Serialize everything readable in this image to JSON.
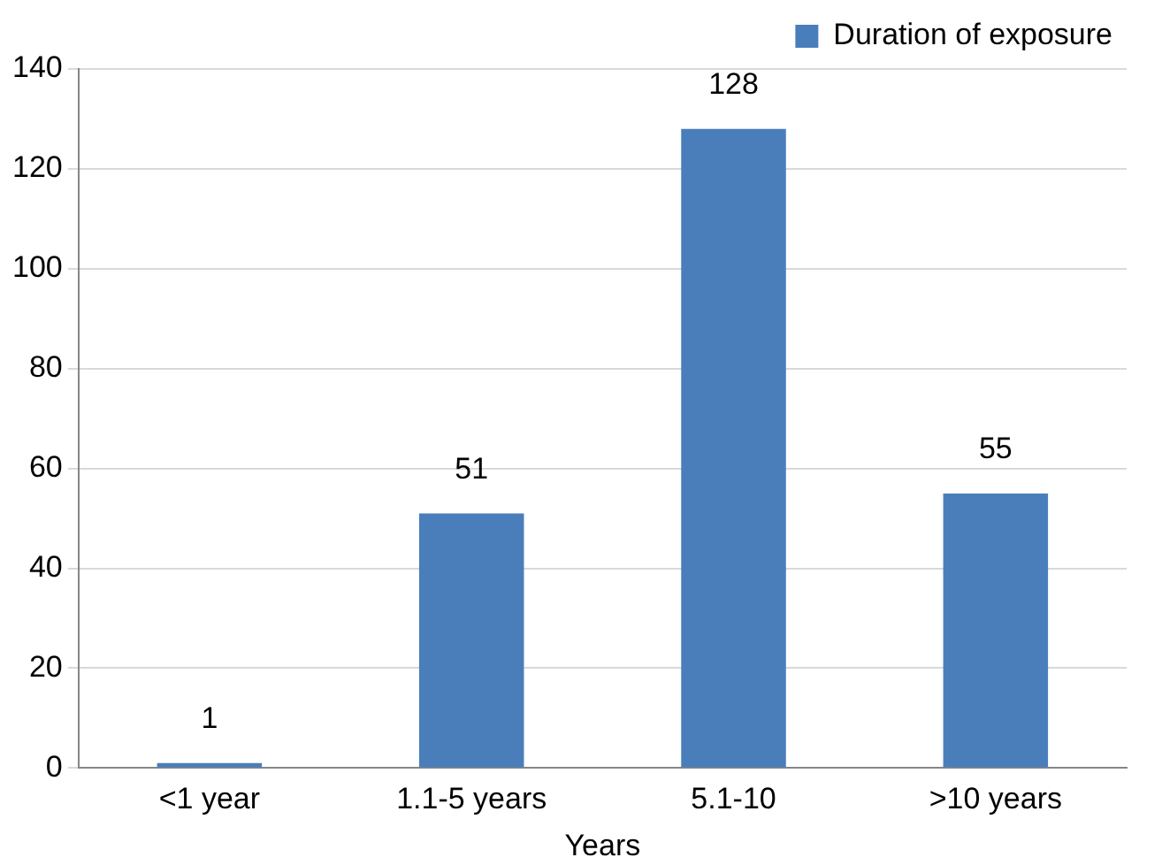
{
  "chart_data": {
    "type": "bar",
    "xlabel": "Years",
    "categories": [
      "<1 year",
      "1.1-5 years",
      "5.1-10",
      ">10 years"
    ],
    "series": [
      {
        "name": "Duration of exposure",
        "color": "#4a7ebb",
        "values": [
          1,
          51,
          128,
          55
        ]
      }
    ],
    "ylim": [
      0,
      140
    ],
    "yticks": [
      0,
      20,
      40,
      60,
      80,
      100,
      120,
      140
    ],
    "grid": "y",
    "legend": "top right",
    "data_labels": true
  }
}
